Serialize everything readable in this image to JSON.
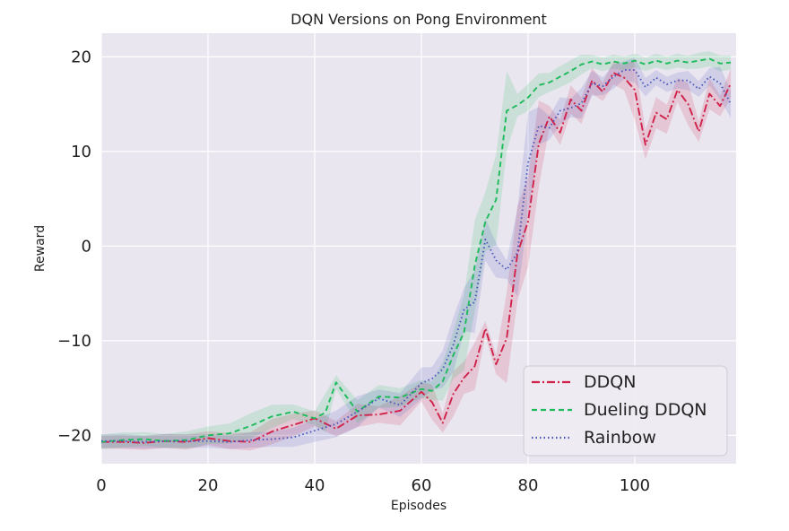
{
  "chart_data": {
    "type": "line",
    "title": "DQN Versions on Pong Environment",
    "xlabel": "Episodes",
    "ylabel": "Reward",
    "xlim": [
      0,
      119
    ],
    "ylim": [
      -23,
      22.5
    ],
    "x_ticks": [
      0,
      20,
      40,
      60,
      80,
      100
    ],
    "y_ticks": [
      -20,
      -10,
      0,
      10,
      20
    ],
    "y_tick_labels": [
      "−20",
      "−10",
      "0",
      "10",
      "20"
    ],
    "x_tick_labels": [
      "0",
      "20",
      "40",
      "60",
      "80",
      "100"
    ],
    "grid": true,
    "legend_position": "bottom-right",
    "background": "#eae6f0",
    "series": [
      {
        "name": "DDQN",
        "color": "#d0224a",
        "dash": "dashdot",
        "x": [
          0,
          4,
          8,
          12,
          16,
          20,
          24,
          28,
          32,
          36,
          40,
          44,
          48,
          52,
          56,
          60,
          62,
          64,
          66,
          68,
          70,
          72,
          74,
          76,
          78,
          80,
          82,
          84,
          86,
          88,
          90,
          92,
          94,
          96,
          98,
          100,
          102,
          104,
          106,
          108,
          110,
          112,
          114,
          116,
          118
        ],
        "y": [
          -20.7,
          -20.7,
          -20.8,
          -20.6,
          -20.7,
          -20.3,
          -20.6,
          -20.7,
          -19.6,
          -18.9,
          -18.2,
          -19.3,
          -17.9,
          -17.8,
          -17.4,
          -15.4,
          -16.5,
          -18.7,
          -15.6,
          -13.9,
          -12.7,
          -8.7,
          -12.5,
          -9.7,
          -0.8,
          2.6,
          10.8,
          13.7,
          12.0,
          15.5,
          14.3,
          17.5,
          16.3,
          18.3,
          17.8,
          16.5,
          10.7,
          14.1,
          13.4,
          16.5,
          15.0,
          12.1,
          16.1,
          14.8,
          17.2
        ]
      },
      {
        "name": "Dueling DDQN",
        "color": "#1fba5b",
        "dash": "dashed",
        "x": [
          0,
          4,
          8,
          12,
          16,
          20,
          24,
          28,
          32,
          36,
          40,
          42,
          44,
          48,
          52,
          56,
          60,
          62,
          64,
          66,
          68,
          70,
          72,
          74,
          76,
          78,
          80,
          82,
          84,
          86,
          88,
          90,
          92,
          94,
          96,
          98,
          100,
          102,
          104,
          106,
          108,
          110,
          112,
          114,
          116,
          118
        ],
        "y": [
          -20.7,
          -20.5,
          -20.4,
          -20.6,
          -20.5,
          -20.0,
          -19.8,
          -19.0,
          -18.0,
          -17.5,
          -18.2,
          -17.6,
          -14.4,
          -17.5,
          -15.9,
          -16.0,
          -15.1,
          -15.3,
          -14.3,
          -11.5,
          -9.1,
          -2.1,
          2.6,
          4.9,
          14.3,
          14.9,
          15.7,
          17.0,
          17.3,
          17.9,
          18.5,
          19.2,
          19.5,
          19.2,
          19.5,
          19.3,
          19.6,
          19.2,
          19.6,
          19.3,
          19.6,
          19.4,
          19.6,
          19.8,
          19.3,
          19.4
        ]
      },
      {
        "name": "Rainbow",
        "color": "#4a56b8",
        "dash": "dotted",
        "x": [
          0,
          4,
          8,
          12,
          16,
          20,
          24,
          28,
          32,
          36,
          40,
          44,
          48,
          52,
          56,
          60,
          62,
          64,
          66,
          68,
          70,
          72,
          74,
          76,
          78,
          80,
          82,
          84,
          86,
          88,
          90,
          92,
          94,
          96,
          98,
          100,
          102,
          104,
          106,
          108,
          110,
          112,
          114,
          116,
          118
        ],
        "y": [
          -20.6,
          -20.6,
          -20.7,
          -20.6,
          -20.6,
          -20.6,
          -20.7,
          -20.5,
          -20.4,
          -20.2,
          -19.5,
          -18.8,
          -17.5,
          -16.1,
          -16.8,
          -14.5,
          -14.0,
          -13.0,
          -10.4,
          -6.7,
          -5.9,
          0.7,
          -1.5,
          -2.5,
          -0.7,
          8.8,
          12.7,
          12.5,
          14.3,
          14.6,
          15.1,
          17.2,
          16.9,
          17.9,
          18.6,
          18.6,
          16.8,
          17.8,
          17.1,
          17.5,
          17.5,
          16.6,
          17.9,
          17.2,
          15.0
        ]
      }
    ]
  }
}
